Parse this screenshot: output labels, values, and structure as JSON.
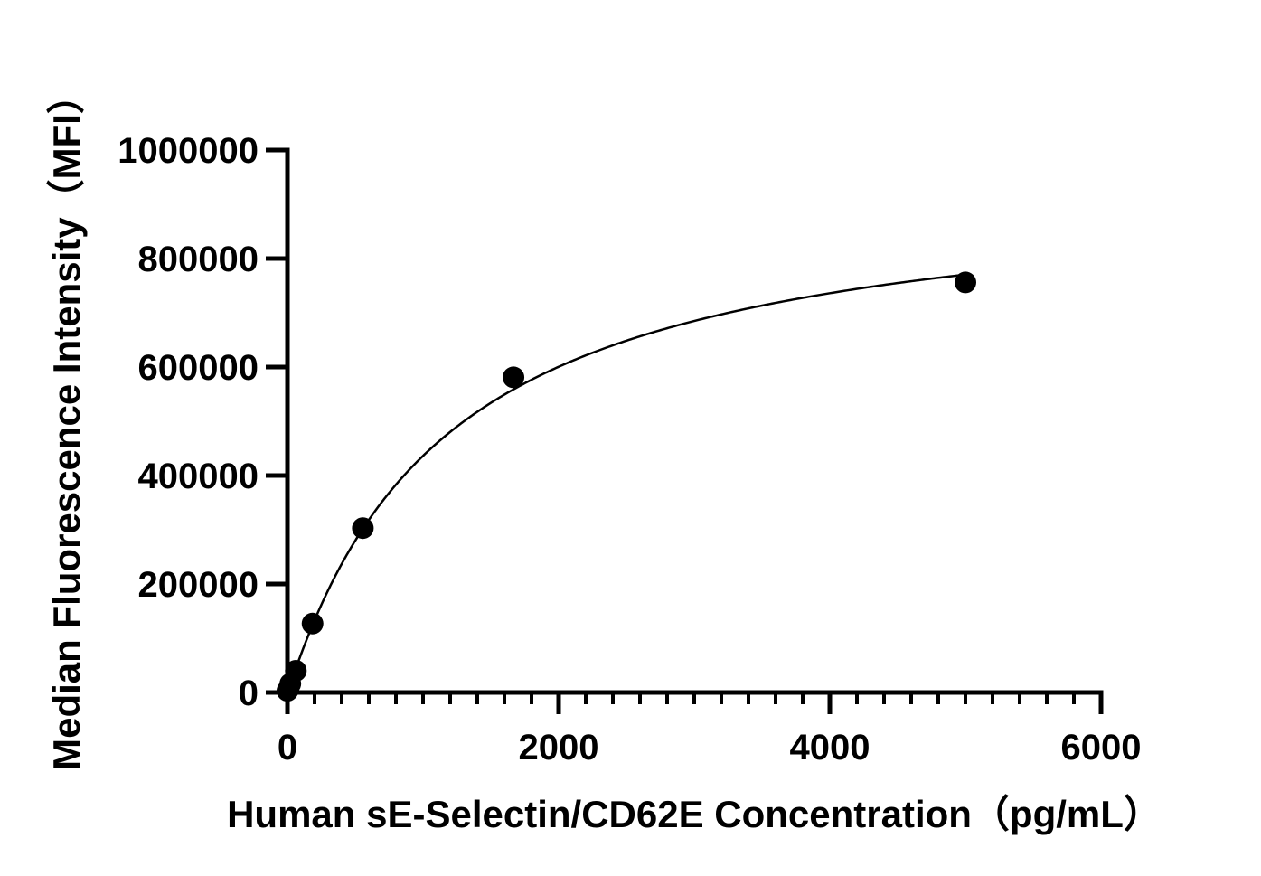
{
  "chart_data": {
    "type": "scatter",
    "title": "",
    "xlabel": "Human sE-Selectin/CD62E Concentration（pg/mL）",
    "ylabel": "Median Fluorescence Intensity（MFI）",
    "xlim": [
      0,
      6000
    ],
    "ylim": [
      0,
      1000000
    ],
    "x_ticks": [
      0,
      2000,
      4000,
      6000
    ],
    "x_tick_labels": [
      "0",
      "2000",
      "4000",
      "6000"
    ],
    "x_minor_tick_step": 200,
    "y_ticks": [
      0,
      200000,
      400000,
      600000,
      800000,
      1000000
    ],
    "y_tick_labels": [
      "0",
      "200000",
      "400000",
      "600000",
      "800000",
      "1000000"
    ],
    "grid": false,
    "legend": "none",
    "colors": {
      "marker": "#000000",
      "curve": "#000000",
      "axis": "#000000"
    },
    "series": [
      {
        "x": [
          0,
          7,
          21,
          62,
          185,
          556,
          1667,
          5000
        ],
        "y": [
          3000,
          6000,
          16000,
          40000,
          127000,
          303000,
          581000,
          756000
        ]
      }
    ],
    "fit_curve": {
      "model": "4PL",
      "bottom": 0,
      "top": 940000,
      "ec50": 1150,
      "hill": 1.03
    }
  }
}
